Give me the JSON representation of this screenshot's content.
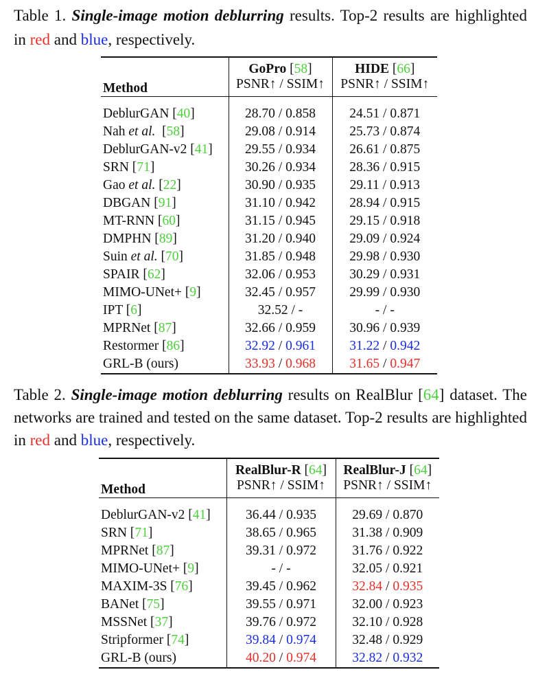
{
  "table1": {
    "caption": [
      "Table 1. ",
      {
        "text": "Single-image motion deblurring",
        "style": "bi"
      },
      " results.  Top-2 results are highlighted in ",
      {
        "text": "red",
        "style": "red"
      },
      " and ",
      {
        "text": "blue",
        "style": "blue"
      },
      ", respectively."
    ],
    "header": {
      "method": "Method",
      "groups": [
        {
          "title": [
            {
              "text": "GoPro",
              "style": "b"
            },
            " [",
            {
              "text": "58",
              "style": "cite"
            },
            "]"
          ],
          "sub": "PSNR↑ / SSIM↑"
        },
        {
          "title": [
            {
              "text": "HIDE",
              "style": "b"
            },
            " [",
            {
              "text": "66",
              "style": "cite"
            },
            "]"
          ],
          "sub": "PSNR↑ / SSIM↑"
        }
      ]
    },
    "rows": [
      {
        "method": [
          "DeblurGAN [",
          {
            "text": "40",
            "style": "cite"
          },
          "]"
        ],
        "cells": [
          [
            "28.70 / 0.858"
          ],
          [
            "24.51 / 0.871"
          ]
        ]
      },
      {
        "method": [
          "Nah ",
          {
            "text": "et al.",
            "style": "i"
          },
          "  [",
          {
            "text": "58",
            "style": "cite"
          },
          "]"
        ],
        "cells": [
          [
            "29.08 / 0.914"
          ],
          [
            "25.73 / 0.874"
          ]
        ]
      },
      {
        "method": [
          "DeblurGAN-v2 [",
          {
            "text": "41",
            "style": "cite"
          },
          "]"
        ],
        "cells": [
          [
            "29.55 / 0.934"
          ],
          [
            "26.61 / 0.875"
          ]
        ]
      },
      {
        "method": [
          "SRN [",
          {
            "text": "71",
            "style": "cite"
          },
          "]"
        ],
        "cells": [
          [
            "30.26 / 0.934"
          ],
          [
            "28.36 / 0.915"
          ]
        ]
      },
      {
        "method": [
          "Gao ",
          {
            "text": "et al.",
            "style": "i"
          },
          " [",
          {
            "text": "22",
            "style": "cite"
          },
          "]"
        ],
        "cells": [
          [
            "30.90 / 0.935"
          ],
          [
            "29.11 / 0.913"
          ]
        ]
      },
      {
        "method": [
          "DBGAN [",
          {
            "text": "91",
            "style": "cite"
          },
          "]"
        ],
        "cells": [
          [
            "31.10 / 0.942"
          ],
          [
            "28.94 / 0.915"
          ]
        ]
      },
      {
        "method": [
          "MT-RNN [",
          {
            "text": "60",
            "style": "cite"
          },
          "]"
        ],
        "cells": [
          [
            "31.15 / 0.945"
          ],
          [
            "29.15 / 0.918"
          ]
        ]
      },
      {
        "method": [
          "DMPHN [",
          {
            "text": "89",
            "style": "cite"
          },
          "]"
        ],
        "cells": [
          [
            "31.20 / 0.940"
          ],
          [
            "29.09 / 0.924"
          ]
        ]
      },
      {
        "method": [
          "Suin ",
          {
            "text": "et al.",
            "style": "i"
          },
          " [",
          {
            "text": "70",
            "style": "cite"
          },
          "]"
        ],
        "cells": [
          [
            "31.85 / 0.948"
          ],
          [
            "29.98 / 0.930"
          ]
        ]
      },
      {
        "method": [
          "SPAIR [",
          {
            "text": "62",
            "style": "cite"
          },
          "]"
        ],
        "cells": [
          [
            "32.06 / 0.953"
          ],
          [
            "30.29 / 0.931"
          ]
        ]
      },
      {
        "method": [
          "MIMO-UNet+ [",
          {
            "text": "9",
            "style": "cite"
          },
          "]"
        ],
        "cells": [
          [
            "32.45 / 0.957"
          ],
          [
            "29.99 / 0.930"
          ]
        ]
      },
      {
        "method": [
          "IPT [",
          {
            "text": "6",
            "style": "cite"
          },
          "]"
        ],
        "cells": [
          [
            "32.52 / -"
          ],
          [
            "- / -"
          ]
        ]
      },
      {
        "method": [
          "MPRNet [",
          {
            "text": "87",
            "style": "cite"
          },
          "]"
        ],
        "cells": [
          [
            "32.66 / 0.959"
          ],
          [
            "30.96 / 0.939"
          ]
        ]
      },
      {
        "method": [
          "Restormer [",
          {
            "text": "86",
            "style": "cite"
          },
          "]"
        ],
        "cells": [
          [
            {
              "text": "32.92",
              "style": "blue"
            },
            " / ",
            {
              "text": "0.961",
              "style": "blue"
            }
          ],
          [
            {
              "text": "31.22",
              "style": "blue"
            },
            " / ",
            {
              "text": "0.942",
              "style": "blue"
            }
          ]
        ]
      },
      {
        "method": [
          "GRL-B (ours)"
        ],
        "cells": [
          [
            {
              "text": "33.93",
              "style": "red"
            },
            " / ",
            {
              "text": "0.968",
              "style": "red"
            }
          ],
          [
            {
              "text": "31.65",
              "style": "red"
            },
            " / ",
            {
              "text": "0.947",
              "style": "red"
            }
          ]
        ]
      }
    ]
  },
  "table2": {
    "caption": [
      "Table 2. ",
      {
        "text": "Single-image motion deblurring",
        "style": "bi"
      },
      " results on RealBlur [",
      {
        "text": "64",
        "style": "cite"
      },
      "] dataset.  The networks are trained and tested on the same dataset. Top-2 results are highlighted in ",
      {
        "text": "red",
        "style": "red"
      },
      " and ",
      {
        "text": "blue",
        "style": "blue"
      },
      ", respectively."
    ],
    "header": {
      "method": "Method",
      "groups": [
        {
          "title": [
            {
              "text": "RealBlur-R",
              "style": "b"
            },
            " [",
            {
              "text": "64",
              "style": "cite"
            },
            "]"
          ],
          "sub": "PSNR↑ / SSIM↑"
        },
        {
          "title": [
            {
              "text": "RealBlur-J",
              "style": "b"
            },
            " [",
            {
              "text": "64",
              "style": "cite"
            },
            "]"
          ],
          "sub": "PSNR↑ / SSIM↑"
        }
      ]
    },
    "rows": [
      {
        "method": [
          "DeblurGAN-v2 [",
          {
            "text": "41",
            "style": "cite"
          },
          "]"
        ],
        "cells": [
          [
            "36.44 / 0.935"
          ],
          [
            "29.69 / 0.870"
          ]
        ]
      },
      {
        "method": [
          "SRN [",
          {
            "text": "71",
            "style": "cite"
          },
          "]"
        ],
        "cells": [
          [
            "38.65 / 0.965"
          ],
          [
            "31.38 / 0.909"
          ]
        ]
      },
      {
        "method": [
          "MPRNet [",
          {
            "text": "87",
            "style": "cite"
          },
          "]"
        ],
        "cells": [
          [
            "39.31 / 0.972"
          ],
          [
            "31.76 / 0.922"
          ]
        ]
      },
      {
        "method": [
          "MIMO-UNet+ [",
          {
            "text": "9",
            "style": "cite"
          },
          "]"
        ],
        "cells": [
          [
            "- / -"
          ],
          [
            "32.05 / 0.921"
          ]
        ]
      },
      {
        "method": [
          "MAXIM-3S [",
          {
            "text": "76",
            "style": "cite"
          },
          "]"
        ],
        "cells": [
          [
            "39.45 / 0.962"
          ],
          [
            {
              "text": "32.84",
              "style": "red"
            },
            " / ",
            {
              "text": "0.935",
              "style": "red"
            }
          ]
        ]
      },
      {
        "method": [
          "BANet [",
          {
            "text": "75",
            "style": "cite"
          },
          "]"
        ],
        "cells": [
          [
            "39.55 / 0.971"
          ],
          [
            "32.00 / 0.923"
          ]
        ]
      },
      {
        "method": [
          "MSSNet [",
          {
            "text": "37",
            "style": "cite"
          },
          "]"
        ],
        "cells": [
          [
            "39.76 / 0.972"
          ],
          [
            "32.10 / 0.928"
          ]
        ]
      },
      {
        "method": [
          "Stripformer [",
          {
            "text": "74",
            "style": "cite"
          },
          "]"
        ],
        "cells": [
          [
            {
              "text": "39.84",
              "style": "blue"
            },
            " / ",
            {
              "text": "0.974",
              "style": "blue"
            }
          ],
          [
            "32.48 / 0.929"
          ]
        ]
      },
      {
        "method": [
          "GRL-B (ours)"
        ],
        "cells": [
          [
            {
              "text": "40.20",
              "style": "red"
            },
            " / ",
            {
              "text": "0.974",
              "style": "red"
            }
          ],
          [
            {
              "text": "32.82",
              "style": "blue"
            },
            " / ",
            {
              "text": "0.932",
              "style": "blue"
            }
          ]
        ]
      }
    ]
  }
}
